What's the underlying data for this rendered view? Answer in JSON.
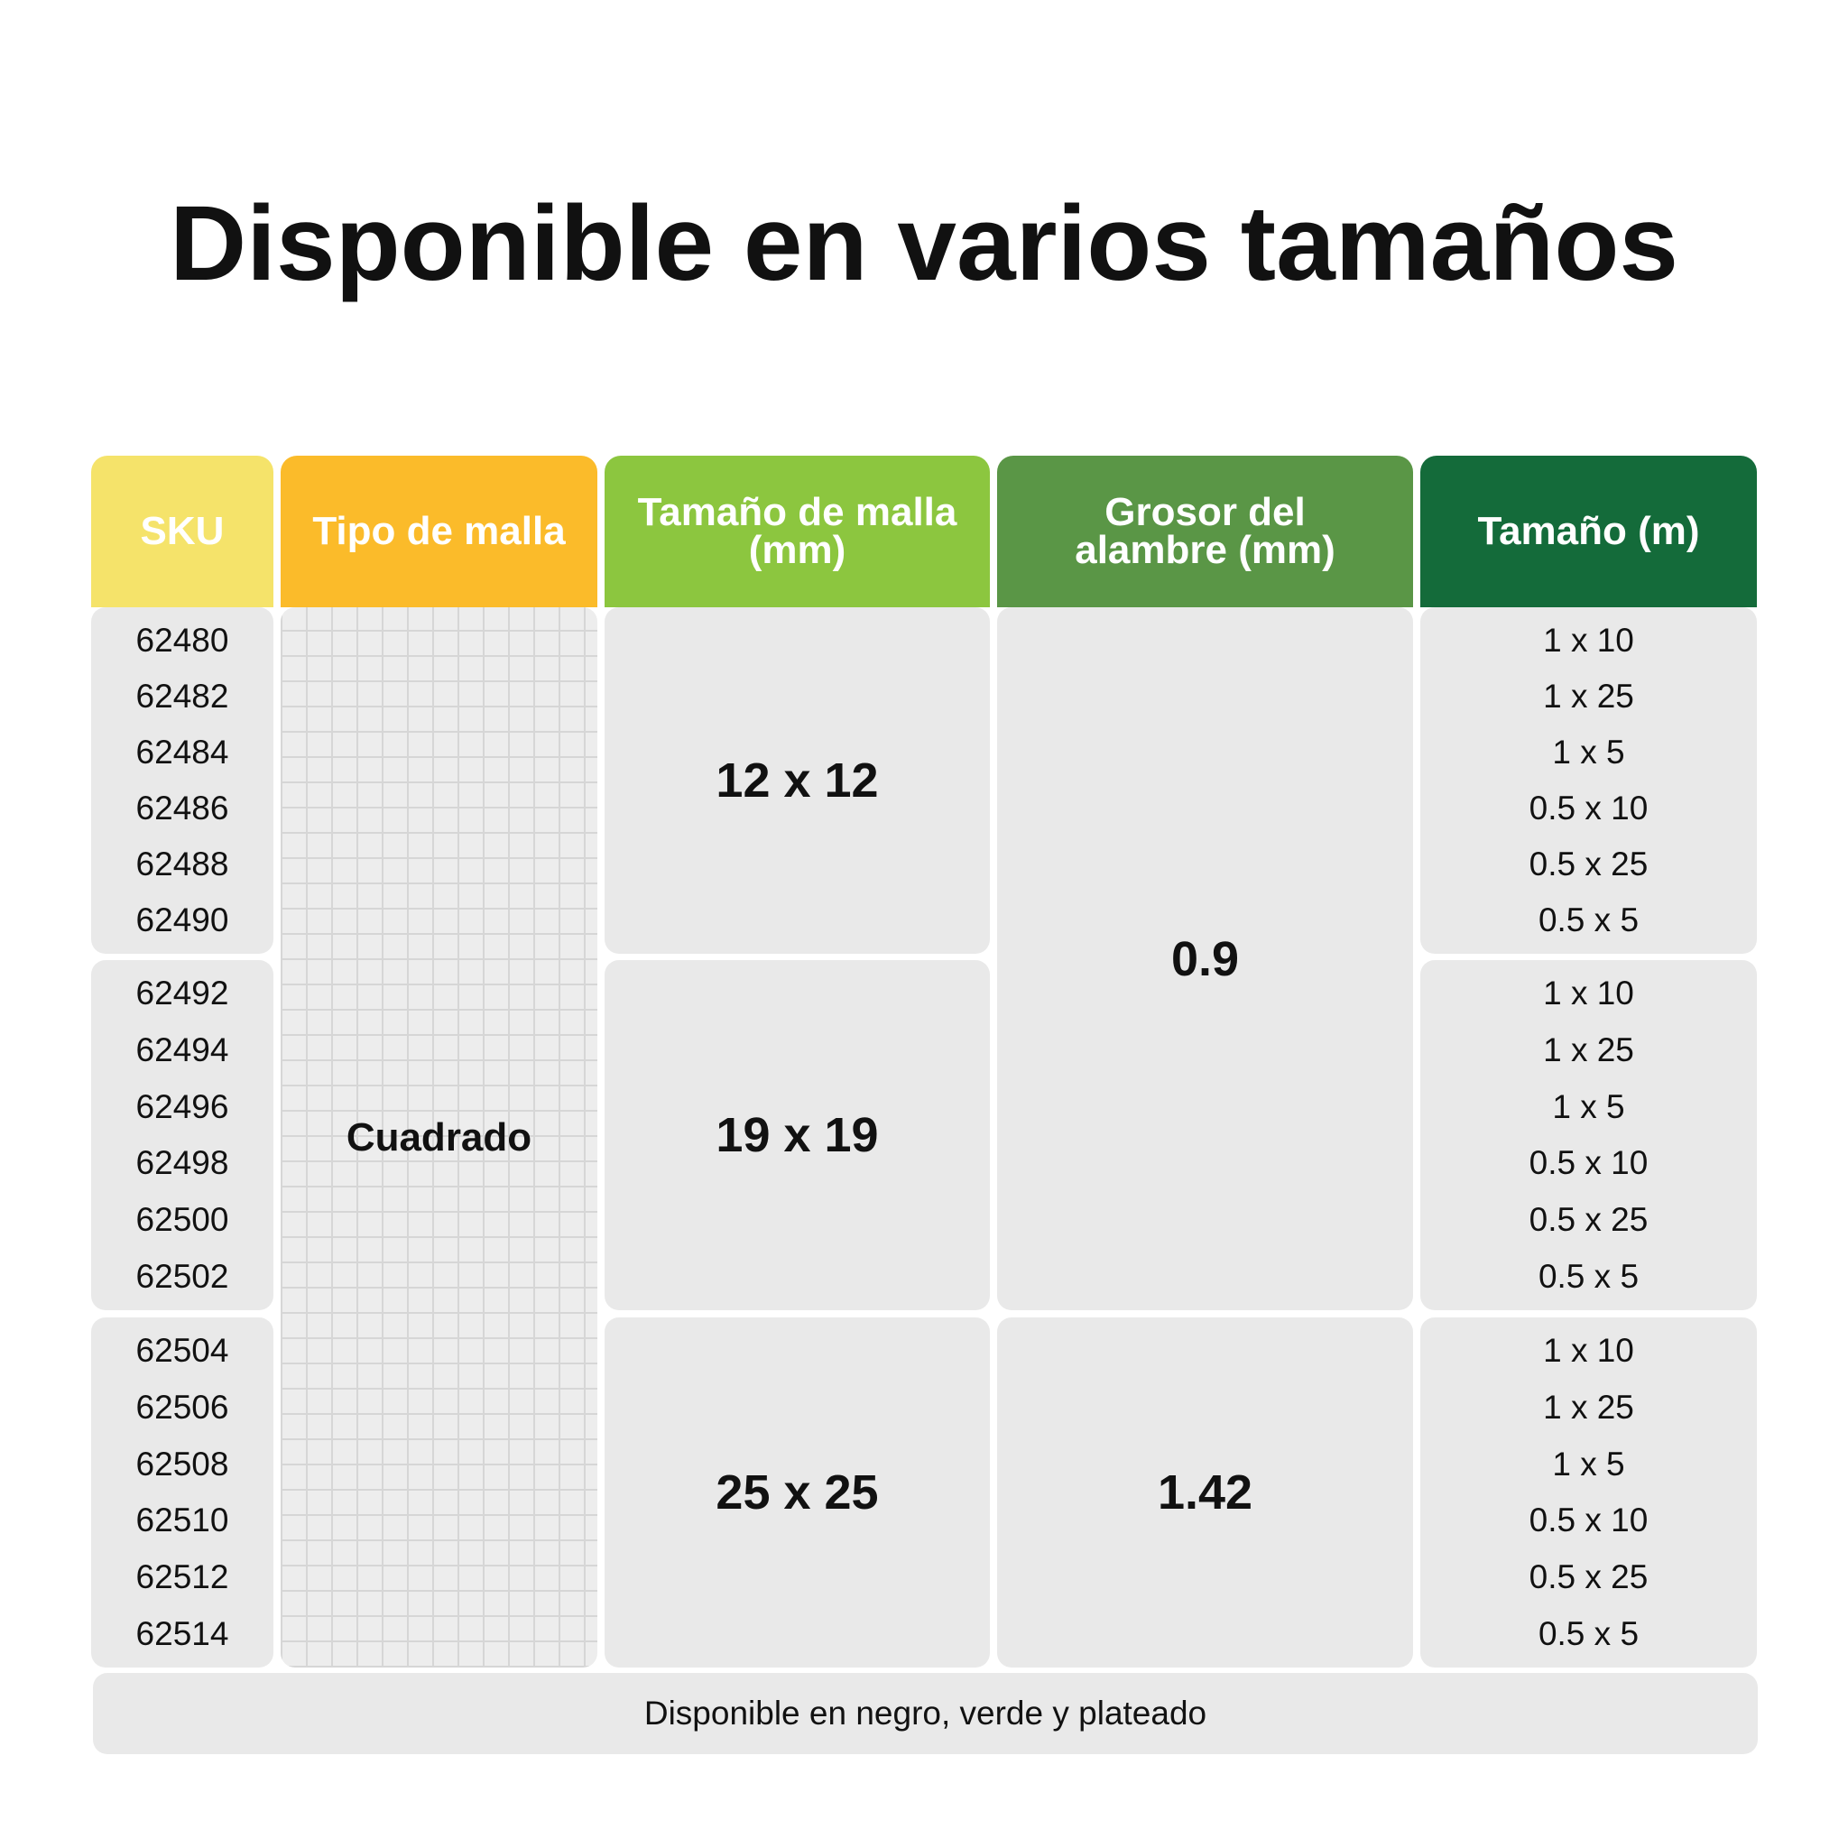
{
  "title": "Disponible en varios tamaños",
  "table": {
    "headers": [
      "SKU",
      "Tipo de malla",
      "Tamaño de malla (mm)",
      "Grosor del alambre (mm)",
      "Tamaño (m)"
    ],
    "mesh_type": "Cuadrado",
    "groups": [
      {
        "skus": [
          "62480",
          "62482",
          "62484",
          "62486",
          "62488",
          "62490"
        ],
        "mesh_size": "12 x 12",
        "sizes": [
          "1 x 10",
          "1 x 25",
          "1 x 5",
          "0.5 x 10",
          "0.5 x 25",
          "0.5 x 5"
        ]
      },
      {
        "skus": [
          "62492",
          "62494",
          "62496",
          "62498",
          "62500",
          "62502"
        ],
        "mesh_size": "19 x 19",
        "sizes": [
          "1 x 10",
          "1 x 25",
          "1 x 5",
          "0.5 x 10",
          "0.5 x 25",
          "0.5 x 5"
        ]
      },
      {
        "skus": [
          "62504",
          "62506",
          "62508",
          "62510",
          "62512",
          "62514"
        ],
        "mesh_size": "25 x 25",
        "sizes": [
          "1 x 10",
          "1 x 25",
          "1 x 5",
          "0.5 x 10",
          "0.5 x 25",
          "0.5 x 5"
        ]
      }
    ],
    "wire_thickness": [
      "0.9",
      "1.42"
    ]
  },
  "footer": "Disponible en negro, verde y plateado"
}
